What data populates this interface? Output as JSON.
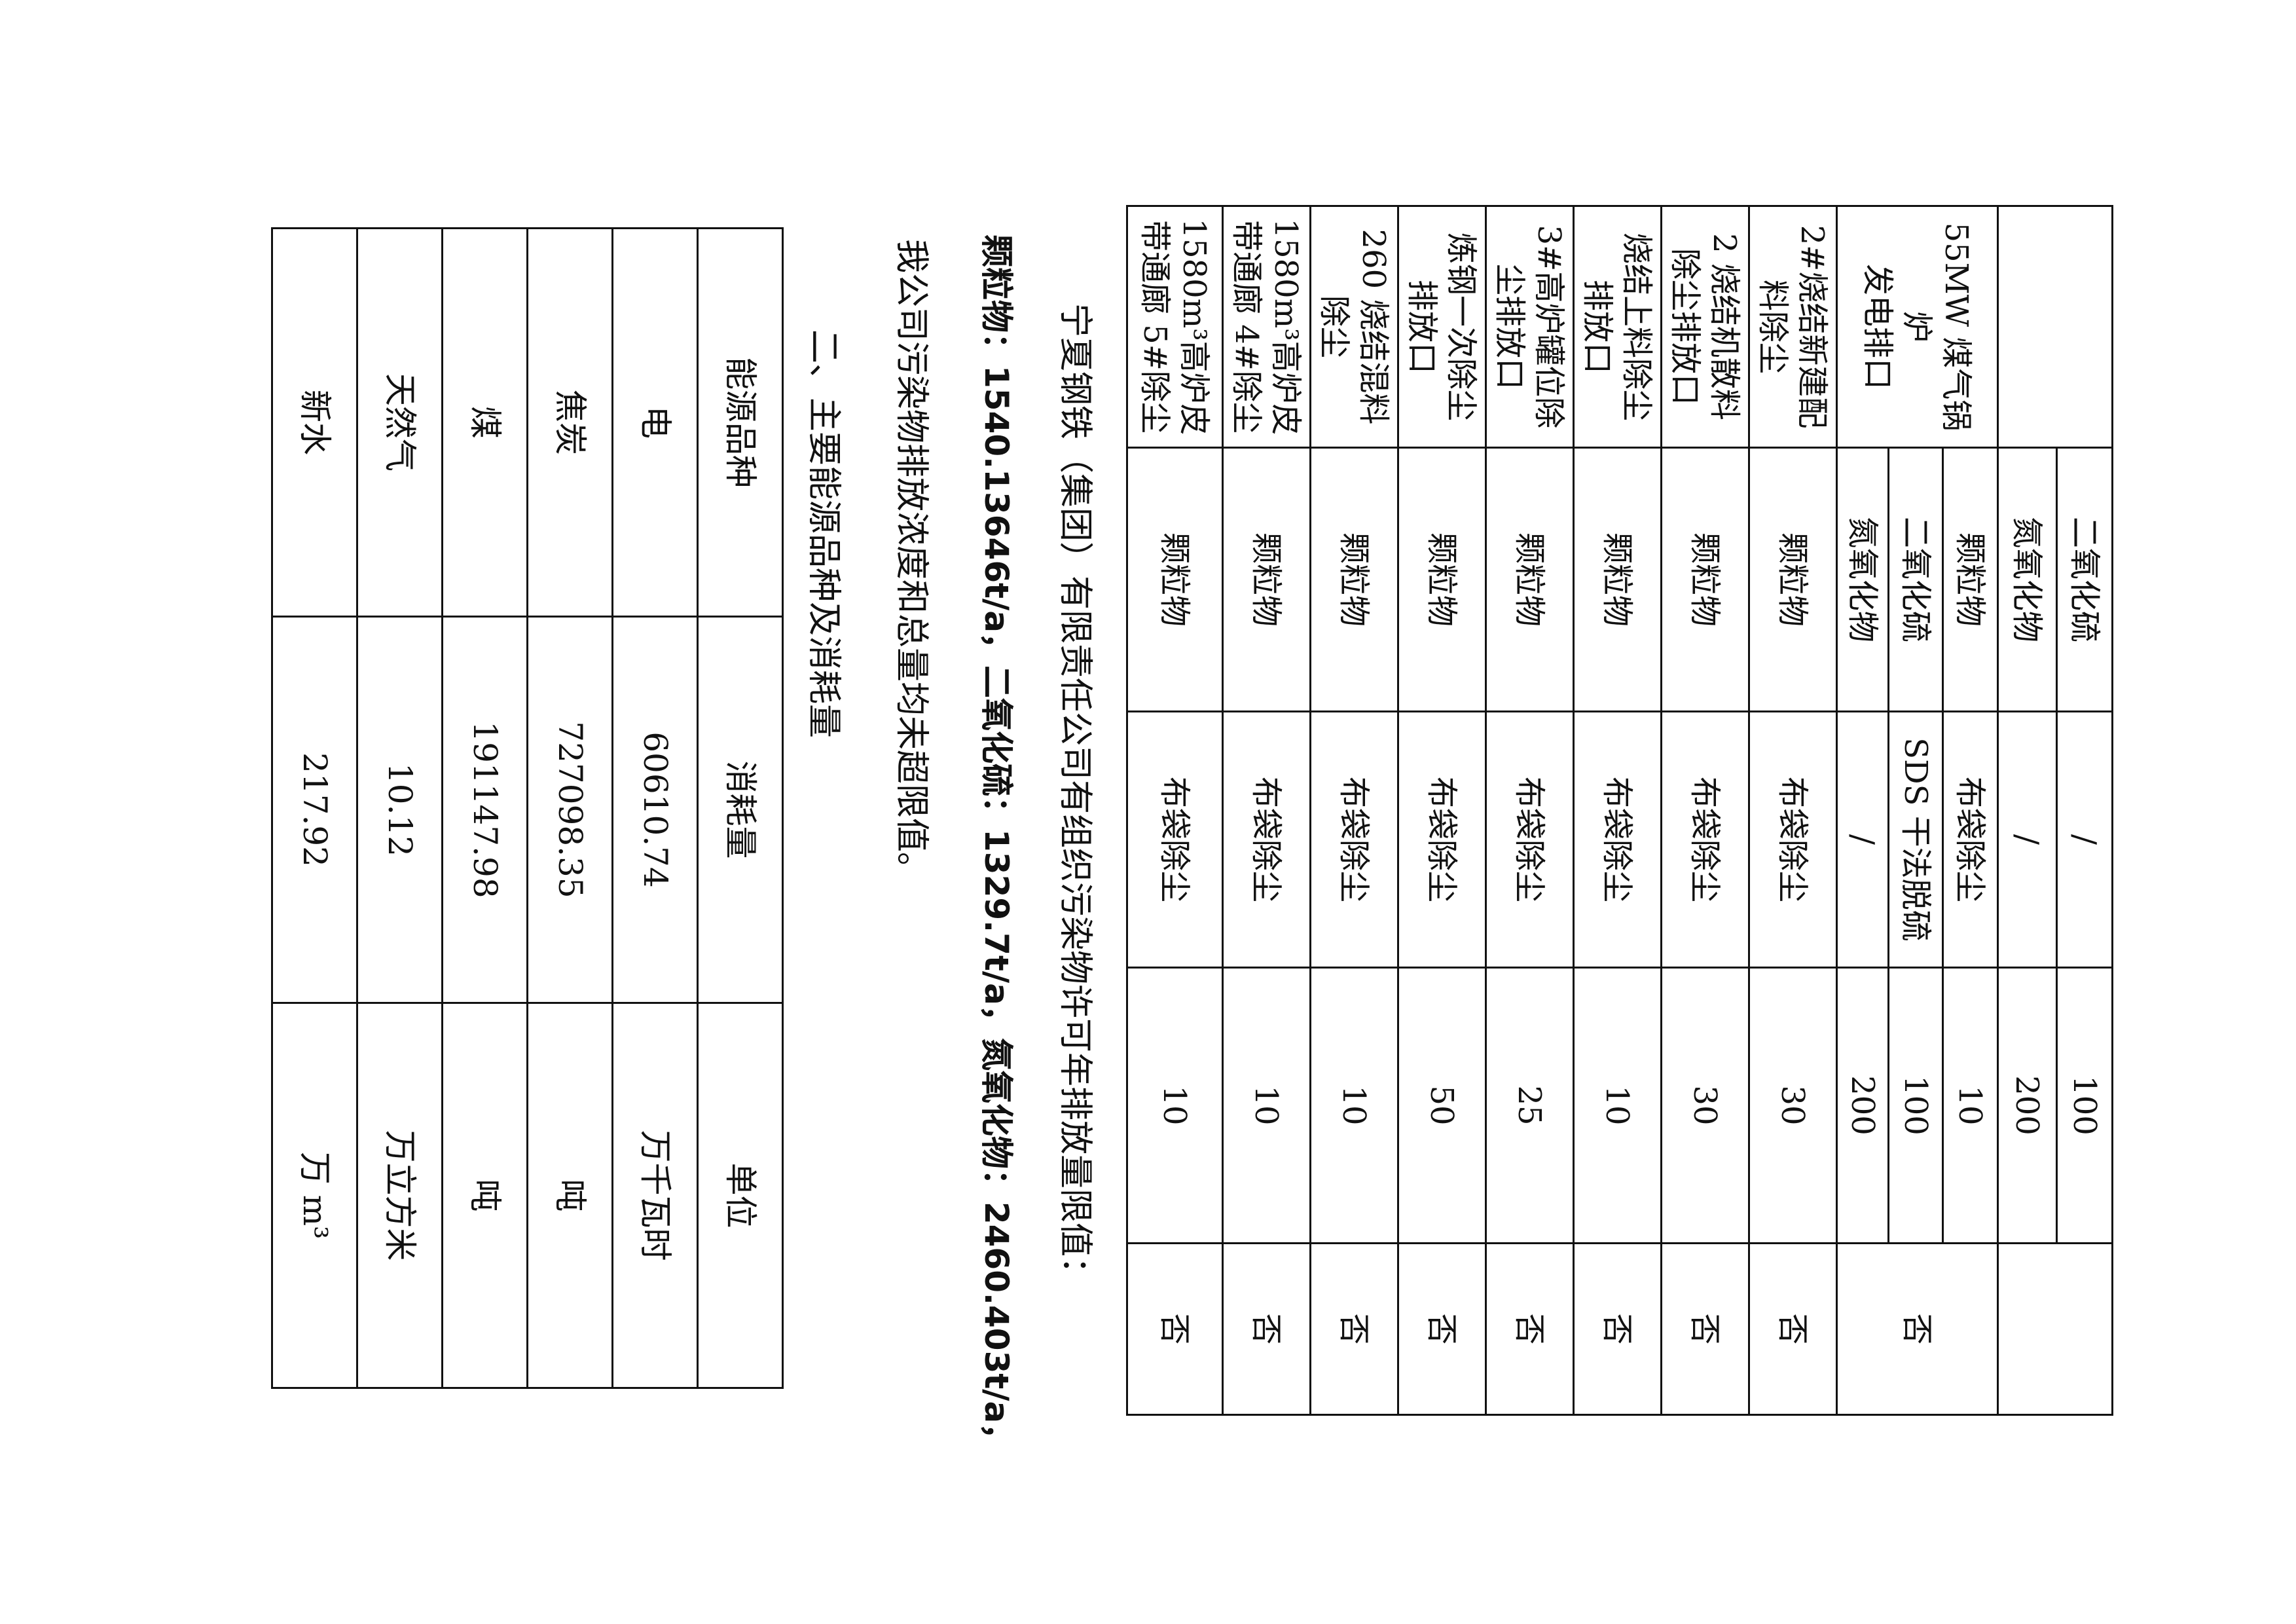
{
  "emission_table": {
    "groups": [
      {
        "outlet": "",
        "verdict": "",
        "items": [
          {
            "pollutant": "二氧化硫",
            "method": "/",
            "limit": "100"
          },
          {
            "pollutant": "氮氧化物",
            "method": "/",
            "limit": "200"
          }
        ]
      },
      {
        "outlet": "55MW 煤气锅炉\n发电排口",
        "verdict": "否",
        "items": [
          {
            "pollutant": "颗粒物",
            "method": "布袋除尘",
            "limit": "10"
          },
          {
            "pollutant": "二氧化硫",
            "method": "SDS 干法脱硫",
            "limit": "100"
          },
          {
            "pollutant": "氮氧化物",
            "method": "/",
            "limit": "200"
          }
        ]
      },
      {
        "outlet": "2#烧结新建配\n料除尘",
        "verdict": "否",
        "items": [
          {
            "pollutant": "颗粒物",
            "method": "布袋除尘",
            "limit": "30"
          }
        ]
      },
      {
        "outlet": "2 烧结机散料\n除尘排放口",
        "verdict": "否",
        "items": [
          {
            "pollutant": "颗粒物",
            "method": "布袋除尘",
            "limit": "30"
          }
        ]
      },
      {
        "outlet": "烧结上料除尘\n排放口",
        "verdict": "否",
        "items": [
          {
            "pollutant": "颗粒物",
            "method": "布袋除尘",
            "limit": "10"
          }
        ]
      },
      {
        "outlet": "3#高炉罐位除\n尘排放口",
        "verdict": "否",
        "items": [
          {
            "pollutant": "颗粒物",
            "method": "布袋除尘",
            "limit": "25"
          }
        ]
      },
      {
        "outlet": "炼钢一次除尘\n排放口",
        "verdict": "否",
        "items": [
          {
            "pollutant": "颗粒物",
            "method": "布袋除尘",
            "limit": "50"
          }
        ]
      },
      {
        "outlet": "260 烧结混料\n除尘",
        "verdict": "否",
        "items": [
          {
            "pollutant": "颗粒物",
            "method": "布袋除尘",
            "limit": "10"
          }
        ]
      },
      {
        "outlet": "1580m³高炉皮\n带通廊 4#除尘",
        "verdict": "否",
        "items": [
          {
            "pollutant": "颗粒物",
            "method": "布袋除尘",
            "limit": "10"
          }
        ]
      },
      {
        "outlet": "1580m³高炉皮\n带通廊 5#除尘",
        "verdict": "否",
        "items": [
          {
            "pollutant": "颗粒物",
            "method": "布袋除尘",
            "limit": "10"
          }
        ]
      }
    ]
  },
  "text": {
    "permit_intro": "宁夏钢铁（集团）有限责任公司有组织污染物许可年排放量限值：",
    "permit_values": "颗粒物：1540.13646t/a，二氧化硫：1329.7t/a，氮氧化物：2460.403t/a，",
    "conclusion": "我公司污染物排放浓度和总量均未超限值。",
    "section_heading": "二、主要能源品种及消耗量"
  },
  "energy_table": {
    "headers": [
      "能源品种",
      "消耗量",
      "单位"
    ],
    "rows": [
      [
        "电",
        "60610.74",
        "万千瓦时"
      ],
      [
        "焦炭",
        "727098.35",
        "吨"
      ],
      [
        "煤",
        "191147.98",
        "吨"
      ],
      [
        "天然气",
        "10.12",
        "万立方米"
      ],
      [
        "新水",
        "217.92",
        "万 m³"
      ]
    ]
  }
}
